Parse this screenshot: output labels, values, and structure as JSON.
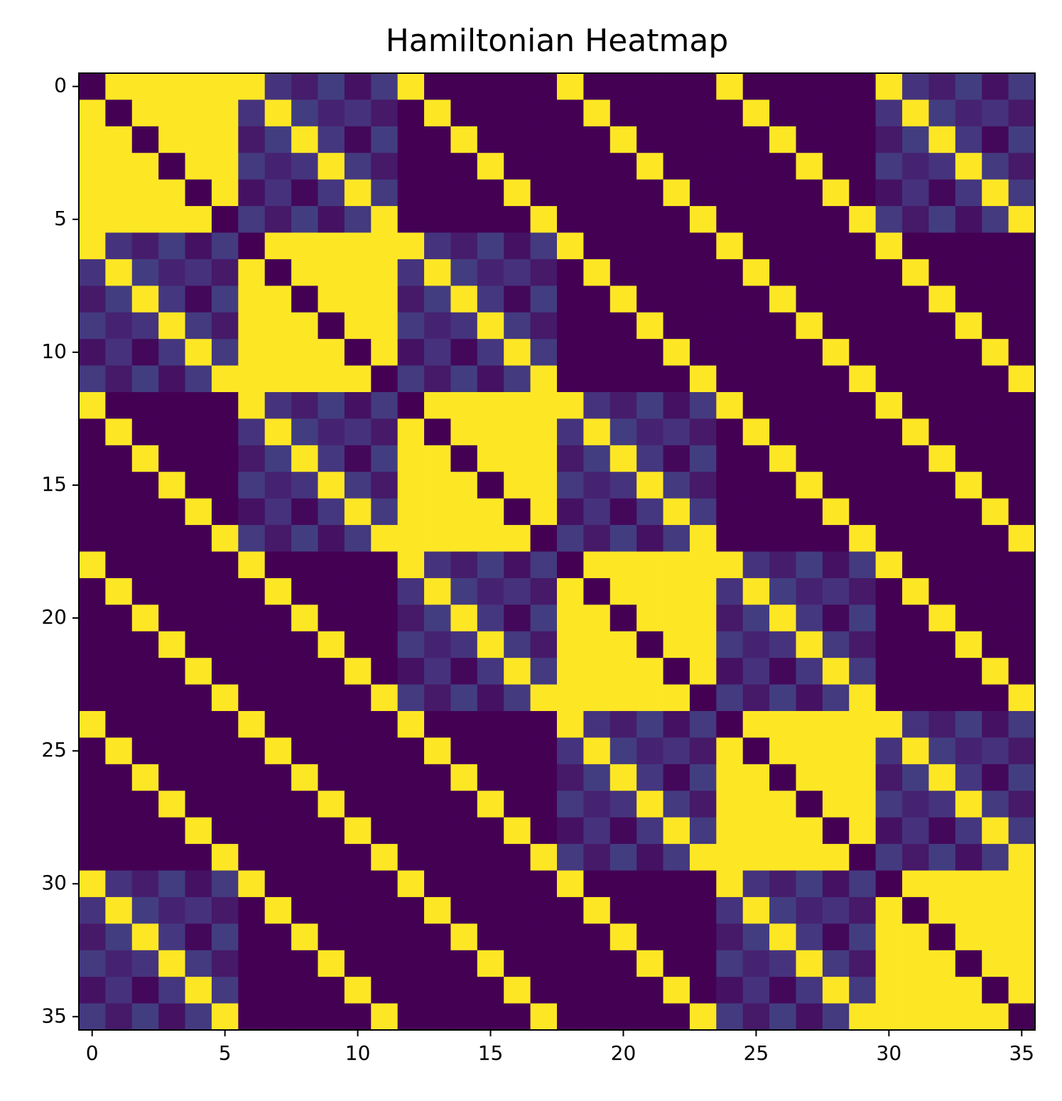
{
  "chart_data": {
    "type": "heatmap",
    "title": "Hamiltonian Heatmap",
    "colormap": "viridis",
    "xlim": [
      -0.5,
      35.5
    ],
    "ylim": [
      35.5,
      -0.5
    ],
    "xticks": [
      0,
      5,
      10,
      15,
      20,
      25,
      30,
      35
    ],
    "yticks": [
      0,
      5,
      10,
      15,
      20,
      25,
      30,
      35
    ],
    "z": [
      [
        0,
        1,
        1,
        1,
        1,
        1,
        1,
        0.15,
        0.08,
        0.18,
        0.05,
        0.17,
        1,
        0,
        0,
        0,
        0,
        0,
        1,
        0,
        0,
        0,
        0,
        0,
        1,
        0,
        0,
        0,
        0,
        0,
        1,
        0.15,
        0.08,
        0.18,
        0.05,
        0.17
      ],
      [
        1,
        0,
        1,
        1,
        1,
        1,
        0.15,
        1,
        0.18,
        0.1,
        0.14,
        0.07,
        0,
        1,
        0,
        0,
        0,
        0,
        0,
        1,
        0,
        0,
        0,
        0,
        0,
        1,
        0,
        0,
        0,
        0,
        0.15,
        1,
        0.18,
        0.1,
        0.14,
        0.07
      ],
      [
        1,
        1,
        0,
        1,
        1,
        1,
        0.07,
        0.18,
        1,
        0.16,
        0.02,
        0.18,
        0,
        0,
        1,
        0,
        0,
        0,
        0,
        0,
        1,
        0,
        0,
        0,
        0,
        0,
        1,
        0,
        0,
        0,
        0.07,
        0.18,
        1,
        0.16,
        0.02,
        0.18
      ],
      [
        1,
        1,
        1,
        0,
        1,
        1,
        0.17,
        0.1,
        0.15,
        1,
        0.17,
        0.07,
        0,
        0,
        0,
        1,
        0,
        0,
        0,
        0,
        0,
        1,
        0,
        0,
        0,
        0,
        0,
        1,
        0,
        0,
        0.17,
        0.1,
        0.15,
        1,
        0.17,
        0.07
      ],
      [
        1,
        1,
        1,
        1,
        0,
        1,
        0.05,
        0.14,
        0.02,
        0.16,
        1,
        0.17,
        0,
        0,
        0,
        0,
        1,
        0,
        0,
        0,
        0,
        0,
        1,
        0,
        0,
        0,
        0,
        0,
        1,
        0,
        0.05,
        0.14,
        0.02,
        0.16,
        1,
        0.17
      ],
      [
        1,
        1,
        1,
        1,
        1,
        0,
        0.17,
        0.07,
        0.18,
        0.05,
        0.17,
        1,
        0,
        0,
        0,
        0,
        0,
        1,
        0,
        0,
        0,
        0,
        0,
        1,
        0,
        0,
        0,
        0,
        0,
        1,
        0.17,
        0.07,
        0.18,
        0.05,
        0.17,
        1
      ],
      [
        1,
        0.15,
        0.08,
        0.18,
        0.05,
        0.17,
        0,
        1,
        1,
        1,
        1,
        1,
        1,
        0.15,
        0.08,
        0.18,
        0.05,
        0.17,
        1,
        0,
        0,
        0,
        0,
        0,
        1,
        0,
        0,
        0,
        0,
        0,
        1,
        0,
        0,
        0,
        0,
        0
      ],
      [
        0.15,
        1,
        0.18,
        0.1,
        0.14,
        0.07,
        1,
        0,
        1,
        1,
        1,
        1,
        0.15,
        1,
        0.18,
        0.1,
        0.14,
        0.07,
        0,
        1,
        0,
        0,
        0,
        0,
        0,
        1,
        0,
        0,
        0,
        0,
        0,
        1,
        0,
        0,
        0,
        0
      ],
      [
        0.07,
        0.18,
        1,
        0.16,
        0.02,
        0.18,
        1,
        1,
        0,
        1,
        1,
        1,
        0.07,
        0.18,
        1,
        0.16,
        0.02,
        0.18,
        0,
        0,
        1,
        0,
        0,
        0,
        0,
        0,
        1,
        0,
        0,
        0,
        0,
        0,
        1,
        0,
        0,
        0
      ],
      [
        0.17,
        0.1,
        0.15,
        1,
        0.17,
        0.07,
        1,
        1,
        1,
        0,
        1,
        1,
        0.17,
        0.1,
        0.15,
        1,
        0.17,
        0.07,
        0,
        0,
        0,
        1,
        0,
        0,
        0,
        0,
        0,
        1,
        0,
        0,
        0,
        0,
        0,
        1,
        0,
        0
      ],
      [
        0.05,
        0.14,
        0.02,
        0.16,
        1,
        0.17,
        1,
        1,
        1,
        1,
        0,
        1,
        0.05,
        0.14,
        0.02,
        0.16,
        1,
        0.17,
        0,
        0,
        0,
        0,
        1,
        0,
        0,
        0,
        0,
        0,
        1,
        0,
        0,
        0,
        0,
        0,
        1,
        0
      ],
      [
        0.17,
        0.07,
        0.18,
        0.05,
        0.17,
        1,
        1,
        1,
        1,
        1,
        1,
        0,
        0.17,
        0.07,
        0.18,
        0.05,
        0.17,
        1,
        0,
        0,
        0,
        0,
        0,
        1,
        0,
        0,
        0,
        0,
        0,
        1,
        0,
        0,
        0,
        0,
        0,
        1
      ],
      [
        1,
        0,
        0,
        0,
        0,
        0,
        1,
        0.15,
        0.08,
        0.18,
        0.05,
        0.17,
        0,
        1,
        1,
        1,
        1,
        1,
        1,
        0.15,
        0.08,
        0.18,
        0.05,
        0.17,
        1,
        0,
        0,
        0,
        0,
        0,
        1,
        0,
        0,
        0,
        0,
        0
      ],
      [
        0,
        1,
        0,
        0,
        0,
        0,
        0.15,
        1,
        0.18,
        0.1,
        0.14,
        0.07,
        1,
        0,
        1,
        1,
        1,
        1,
        0.15,
        1,
        0.18,
        0.1,
        0.14,
        0.07,
        0,
        1,
        0,
        0,
        0,
        0,
        0,
        1,
        0,
        0,
        0,
        0
      ],
      [
        0,
        0,
        1,
        0,
        0,
        0,
        0.07,
        0.18,
        1,
        0.16,
        0.02,
        0.18,
        1,
        1,
        0,
        1,
        1,
        1,
        0.07,
        0.18,
        1,
        0.16,
        0.02,
        0.18,
        0,
        0,
        1,
        0,
        0,
        0,
        0,
        0,
        1,
        0,
        0,
        0
      ],
      [
        0,
        0,
        0,
        1,
        0,
        0,
        0.17,
        0.1,
        0.15,
        1,
        0.17,
        0.07,
        1,
        1,
        1,
        0,
        1,
        1,
        0.17,
        0.1,
        0.15,
        1,
        0.17,
        0.07,
        0,
        0,
        0,
        1,
        0,
        0,
        0,
        0,
        0,
        1,
        0,
        0
      ],
      [
        0,
        0,
        0,
        0,
        1,
        0,
        0.05,
        0.14,
        0.02,
        0.16,
        1,
        0.17,
        1,
        1,
        1,
        1,
        0,
        1,
        0.05,
        0.14,
        0.02,
        0.16,
        1,
        0.17,
        0,
        0,
        0,
        0,
        1,
        0,
        0,
        0,
        0,
        0,
        1,
        0
      ],
      [
        0,
        0,
        0,
        0,
        0,
        1,
        0.17,
        0.07,
        0.18,
        0.05,
        0.17,
        1,
        1,
        1,
        1,
        1,
        1,
        0,
        0.17,
        0.07,
        0.18,
        0.05,
        0.17,
        1,
        0,
        0,
        0,
        0,
        0,
        1,
        0,
        0,
        0,
        0,
        0,
        1
      ],
      [
        1,
        0,
        0,
        0,
        0,
        0,
        1,
        0,
        0,
        0,
        0,
        0,
        1,
        0.15,
        0.08,
        0.18,
        0.05,
        0.17,
        0,
        1,
        1,
        1,
        1,
        1,
        1,
        0.15,
        0.08,
        0.18,
        0.05,
        0.17,
        1,
        0,
        0,
        0,
        0,
        0
      ],
      [
        0,
        1,
        0,
        0,
        0,
        0,
        0,
        1,
        0,
        0,
        0,
        0,
        0.15,
        1,
        0.18,
        0.1,
        0.14,
        0.07,
        1,
        0,
        1,
        1,
        1,
        1,
        0.15,
        1,
        0.18,
        0.1,
        0.14,
        0.07,
        0,
        1,
        0,
        0,
        0,
        0
      ],
      [
        0,
        0,
        1,
        0,
        0,
        0,
        0,
        0,
        1,
        0,
        0,
        0,
        0.07,
        0.18,
        1,
        0.16,
        0.02,
        0.18,
        1,
        1,
        0,
        1,
        1,
        1,
        0.07,
        0.18,
        1,
        0.16,
        0.02,
        0.18,
        0,
        0,
        1,
        0,
        0,
        0
      ],
      [
        0,
        0,
        0,
        1,
        0,
        0,
        0,
        0,
        0,
        1,
        0,
        0,
        0.17,
        0.1,
        0.15,
        1,
        0.17,
        0.07,
        1,
        1,
        1,
        0,
        1,
        1,
        0.17,
        0.1,
        0.15,
        1,
        0.17,
        0.07,
        0,
        0,
        0,
        1,
        0,
        0
      ],
      [
        0,
        0,
        0,
        0,
        1,
        0,
        0,
        0,
        0,
        0,
        1,
        0,
        0.05,
        0.14,
        0.02,
        0.16,
        1,
        0.17,
        1,
        1,
        1,
        1,
        0,
        1,
        0.05,
        0.14,
        0.02,
        0.16,
        1,
        0.17,
        0,
        0,
        0,
        0,
        1,
        0
      ],
      [
        0,
        0,
        0,
        0,
        0,
        1,
        0,
        0,
        0,
        0,
        0,
        1,
        0.17,
        0.07,
        0.18,
        0.05,
        0.17,
        1,
        1,
        1,
        1,
        1,
        1,
        0,
        0.17,
        0.07,
        0.18,
        0.05,
        0.17,
        1,
        0,
        0,
        0,
        0,
        0,
        1
      ],
      [
        1,
        0,
        0,
        0,
        0,
        0,
        1,
        0,
        0,
        0,
        0,
        0,
        1,
        0,
        0,
        0,
        0,
        0,
        1,
        0.15,
        0.08,
        0.18,
        0.05,
        0.17,
        0,
        1,
        1,
        1,
        1,
        1,
        1,
        0.15,
        0.08,
        0.18,
        0.05,
        0.17
      ],
      [
        0,
        1,
        0,
        0,
        0,
        0,
        0,
        1,
        0,
        0,
        0,
        0,
        0,
        1,
        0,
        0,
        0,
        0,
        0.15,
        1,
        0.18,
        0.1,
        0.14,
        0.07,
        1,
        0,
        1,
        1,
        1,
        1,
        0.15,
        1,
        0.18,
        0.1,
        0.14,
        0.07
      ],
      [
        0,
        0,
        1,
        0,
        0,
        0,
        0,
        0,
        1,
        0,
        0,
        0,
        0,
        0,
        1,
        0,
        0,
        0,
        0.07,
        0.18,
        1,
        0.16,
        0.02,
        0.18,
        1,
        1,
        0,
        1,
        1,
        1,
        0.07,
        0.18,
        1,
        0.16,
        0.02,
        0.18
      ],
      [
        0,
        0,
        0,
        1,
        0,
        0,
        0,
        0,
        0,
        1,
        0,
        0,
        0,
        0,
        0,
        1,
        0,
        0,
        0.17,
        0.1,
        0.15,
        1,
        0.17,
        0.07,
        1,
        1,
        1,
        0,
        1,
        1,
        0.17,
        0.1,
        0.15,
        1,
        0.17,
        0.07
      ],
      [
        0,
        0,
        0,
        0,
        1,
        0,
        0,
        0,
        0,
        0,
        1,
        0,
        0,
        0,
        0,
        0,
        1,
        0,
        0.05,
        0.14,
        0.02,
        0.16,
        1,
        0.17,
        1,
        1,
        1,
        1,
        0,
        1,
        0.05,
        0.14,
        0.02,
        0.16,
        1,
        0.17
      ],
      [
        0,
        0,
        0,
        0,
        0,
        1,
        0,
        0,
        0,
        0,
        0,
        1,
        0,
        0,
        0,
        0,
        0,
        1,
        0.17,
        0.07,
        0.18,
        0.05,
        0.17,
        1,
        1,
        1,
        1,
        1,
        1,
        0,
        0.17,
        0.07,
        0.18,
        0.05,
        0.17,
        1
      ],
      [
        1,
        0.15,
        0.08,
        0.18,
        0.05,
        0.17,
        1,
        0,
        0,
        0,
        0,
        0,
        1,
        0,
        0,
        0,
        0,
        0,
        1,
        0,
        0,
        0,
        0,
        0,
        1,
        0.15,
        0.08,
        0.18,
        0.05,
        0.17,
        0,
        1,
        1,
        1,
        1,
        1
      ],
      [
        0.15,
        1,
        0.18,
        0.1,
        0.14,
        0.07,
        0,
        1,
        0,
        0,
        0,
        0,
        0,
        1,
        0,
        0,
        0,
        0,
        0,
        1,
        0,
        0,
        0,
        0,
        0.15,
        1,
        0.18,
        0.1,
        0.14,
        0.07,
        1,
        0,
        1,
        1,
        1,
        1
      ],
      [
        0.07,
        0.18,
        1,
        0.16,
        0.02,
        0.18,
        0,
        0,
        1,
        0,
        0,
        0,
        0,
        0,
        1,
        0,
        0,
        0,
        0,
        0,
        1,
        0,
        0,
        0,
        0.07,
        0.18,
        1,
        0.16,
        0.02,
        0.18,
        1,
        1,
        0,
        1,
        1,
        1
      ],
      [
        0.17,
        0.1,
        0.15,
        1,
        0.17,
        0.07,
        0,
        0,
        0,
        1,
        0,
        0,
        0,
        0,
        0,
        1,
        0,
        0,
        0,
        0,
        0,
        1,
        0,
        0,
        0.17,
        0.1,
        0.15,
        1,
        0.17,
        0.07,
        1,
        1,
        1,
        0,
        1,
        1
      ],
      [
        0.05,
        0.14,
        0.02,
        0.16,
        1,
        0.17,
        0,
        0,
        0,
        0,
        1,
        0,
        0,
        0,
        0,
        0,
        1,
        0,
        0,
        0,
        0,
        0,
        1,
        0,
        0.05,
        0.14,
        0.02,
        0.16,
        1,
        0.17,
        1,
        1,
        1,
        1,
        0,
        1
      ],
      [
        0.17,
        0.07,
        0.18,
        0.05,
        0.17,
        1,
        0,
        0,
        0,
        0,
        0,
        1,
        0,
        0,
        0,
        0,
        0,
        1,
        0,
        0,
        0,
        0,
        0,
        1,
        0.17,
        0.07,
        0.18,
        0.05,
        0.17,
        1,
        1,
        1,
        1,
        1,
        1,
        0
      ]
    ]
  }
}
